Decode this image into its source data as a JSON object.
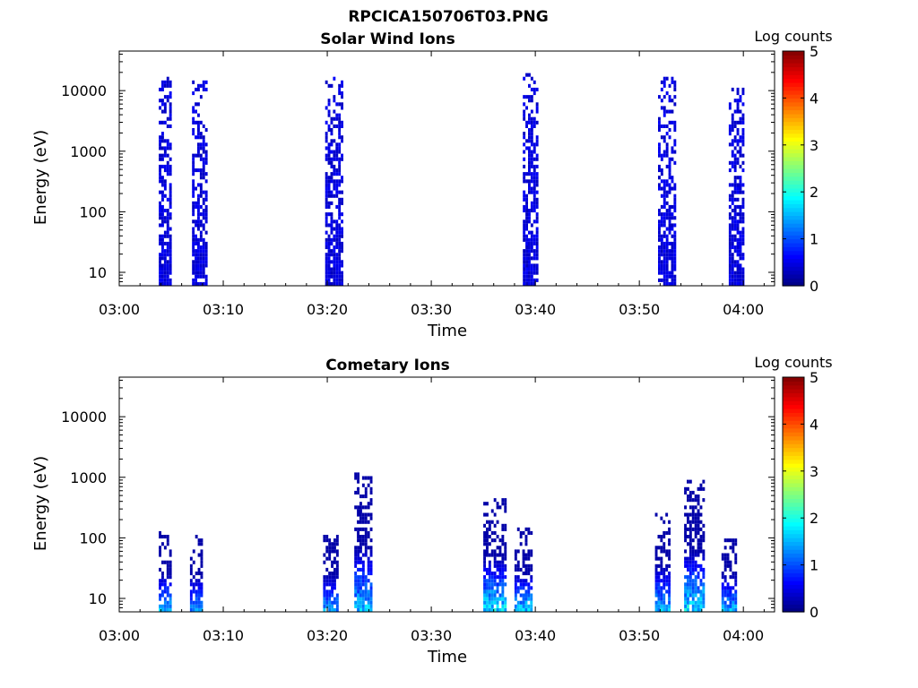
{
  "figure_title": "RPCICA150706T03.PNG",
  "chart_data": [
    {
      "type": "heatmap",
      "title": "Solar Wind Ions",
      "xlabel": "Time",
      "ylabel": "Energy (eV)",
      "x_tick_labels": [
        "03:00",
        "03:10",
        "03:20",
        "03:30",
        "03:40",
        "03:50",
        "04:00"
      ],
      "x_tick_minutes": [
        0,
        10,
        20,
        30,
        40,
        50,
        60
      ],
      "xlim_minutes": [
        0,
        63
      ],
      "y_scale": "log",
      "y_tick_labels": [
        "10",
        "100",
        "1000",
        "10000"
      ],
      "y_tick_values": [
        10,
        100,
        1000,
        10000
      ],
      "ylim": [
        6,
        45000
      ],
      "colorbar": {
        "title": "Log counts",
        "ticks": [
          "0",
          "1",
          "2",
          "3",
          "4",
          "5"
        ],
        "range": [
          0,
          5
        ],
        "colormap": "jet"
      },
      "bursts": [
        {
          "t_start": 3.8,
          "t_end": 5.0,
          "e_min": 6,
          "e_max": 16000,
          "log_counts_max": 0.6
        },
        {
          "t_start": 7.0,
          "t_end": 8.4,
          "e_min": 6,
          "e_max": 14000,
          "log_counts_max": 0.6
        },
        {
          "t_start": 19.8,
          "t_end": 21.3,
          "e_min": 6,
          "e_max": 15000,
          "log_counts_max": 0.6
        },
        {
          "t_start": 38.8,
          "t_end": 40.2,
          "e_min": 6,
          "e_max": 18000,
          "log_counts_max": 0.6
        },
        {
          "t_start": 51.8,
          "t_end": 53.3,
          "e_min": 6,
          "e_max": 15000,
          "log_counts_max": 0.6
        },
        {
          "t_start": 58.6,
          "t_end": 60.0,
          "e_min": 6,
          "e_max": 10000,
          "log_counts_max": 0.6
        }
      ]
    },
    {
      "type": "heatmap",
      "title": "Cometary Ions",
      "xlabel": "Time",
      "ylabel": "Energy (eV)",
      "x_tick_labels": [
        "03:00",
        "03:10",
        "03:20",
        "03:30",
        "03:40",
        "03:50",
        "04:00"
      ],
      "x_tick_minutes": [
        0,
        10,
        20,
        30,
        40,
        50,
        60
      ],
      "xlim_minutes": [
        0,
        63
      ],
      "y_scale": "log",
      "y_tick_labels": [
        "10",
        "100",
        "1000",
        "10000"
      ],
      "y_tick_values": [
        10,
        100,
        1000,
        10000
      ],
      "ylim": [
        6,
        45000
      ],
      "colorbar": {
        "title": "Log counts",
        "ticks": [
          "0",
          "1",
          "2",
          "3",
          "4",
          "5"
        ],
        "range": [
          0,
          5
        ],
        "colormap": "jet"
      },
      "bursts": [
        {
          "t_start": 3.8,
          "t_end": 4.9,
          "e_min": 6,
          "e_max": 120,
          "log_counts_max": 1.8
        },
        {
          "t_start": 6.8,
          "t_end": 8.0,
          "e_min": 6,
          "e_max": 100,
          "log_counts_max": 1.6
        },
        {
          "t_start": 19.6,
          "t_end": 21.0,
          "e_min": 6,
          "e_max": 110,
          "log_counts_max": 1.7
        },
        {
          "t_start": 22.6,
          "t_end": 24.3,
          "e_min": 6,
          "e_max": 1100,
          "log_counts_max": 1.9
        },
        {
          "t_start": 35.0,
          "t_end": 37.0,
          "e_min": 6,
          "e_max": 450,
          "log_counts_max": 2.2
        },
        {
          "t_start": 38.0,
          "t_end": 39.6,
          "e_min": 6,
          "e_max": 130,
          "log_counts_max": 2.0
        },
        {
          "t_start": 51.5,
          "t_end": 52.8,
          "e_min": 6,
          "e_max": 250,
          "log_counts_max": 1.8
        },
        {
          "t_start": 54.3,
          "t_end": 56.2,
          "e_min": 6,
          "e_max": 850,
          "log_counts_max": 2.2
        },
        {
          "t_start": 57.9,
          "t_end": 59.3,
          "e_min": 6,
          "e_max": 110,
          "log_counts_max": 1.8
        }
      ]
    }
  ]
}
